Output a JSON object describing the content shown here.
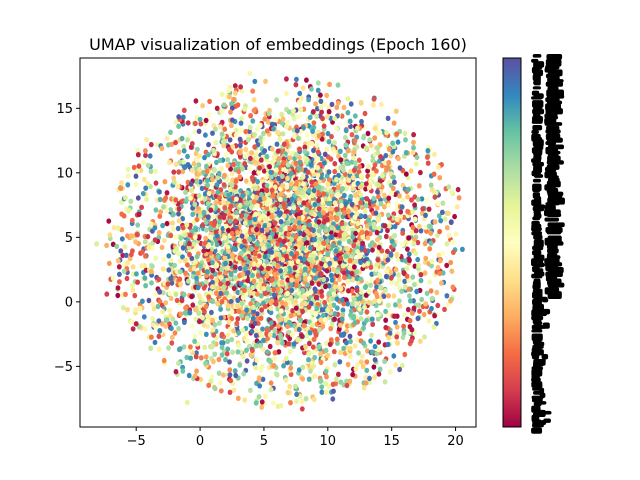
{
  "chart_data": {
    "type": "scatter",
    "title": "UMAP visualization of embeddings (Epoch 160)",
    "xlabel": "",
    "ylabel": "",
    "xlim": [
      -9.4,
      21.6
    ],
    "ylim": [
      -9.7,
      18.9
    ],
    "x_ticks": [
      -5,
      0,
      5,
      10,
      15,
      20
    ],
    "y_ticks": [
      -5,
      0,
      5,
      10,
      15
    ],
    "x_tick_labels": [
      "−5",
      "0",
      "5",
      "10",
      "15",
      "20"
    ],
    "y_tick_labels": [
      "−5",
      "0",
      "5",
      "10",
      "15"
    ],
    "colormap": "Spectral",
    "colorbar": true,
    "colorbar_tick_labels": "illegible, drawn as dense black overlapping text",
    "grid": false,
    "legend": "none",
    "point_count_estimate": 5000,
    "cluster": {
      "center": [
        6.6,
        4.6
      ],
      "x_extent": [
        -8.0,
        20.5
      ],
      "y_extent": [
        -8.3,
        17.7
      ],
      "description": "one dense roughly circular cloud of small points in mixed colors"
    },
    "sample_points": [
      {
        "x": -8.1,
        "y": 4.5,
        "c": 0.62
      },
      {
        "x": -7.3,
        "y": 0.6,
        "c": 0.1
      },
      {
        "x": -6.2,
        "y": 8.8,
        "c": 0.25
      },
      {
        "x": -5.0,
        "y": -1.7,
        "c": 0.05
      },
      {
        "x": -3.0,
        "y": 11.9,
        "c": 0.3
      },
      {
        "x": -1.0,
        "y": -7.8,
        "c": 0.6
      },
      {
        "x": 0.2,
        "y": 15.2,
        "c": 0.35
      },
      {
        "x": 2.4,
        "y": -6.1,
        "c": 0.15
      },
      {
        "x": 3.9,
        "y": 17.7,
        "c": 0.55
      },
      {
        "x": 5.1,
        "y": 3.5,
        "c": 0.9
      },
      {
        "x": 6.3,
        "y": 2.4,
        "c": 0.95
      },
      {
        "x": 7.4,
        "y": 5.8,
        "c": 0.2
      },
      {
        "x": 8.0,
        "y": -8.3,
        "c": 0.1
      },
      {
        "x": 9.2,
        "y": 10.4,
        "c": 0.45
      },
      {
        "x": 10.8,
        "y": 16.8,
        "c": 0.75
      },
      {
        "x": 12.8,
        "y": -3.2,
        "c": 0.8
      },
      {
        "x": 14.6,
        "y": 13.1,
        "c": 0.6
      },
      {
        "x": 16.3,
        "y": -0.6,
        "c": 0.05
      },
      {
        "x": 18.4,
        "y": 6.2,
        "c": 0.3
      },
      {
        "x": 20.2,
        "y": 8.7,
        "c": 0.05
      }
    ]
  }
}
